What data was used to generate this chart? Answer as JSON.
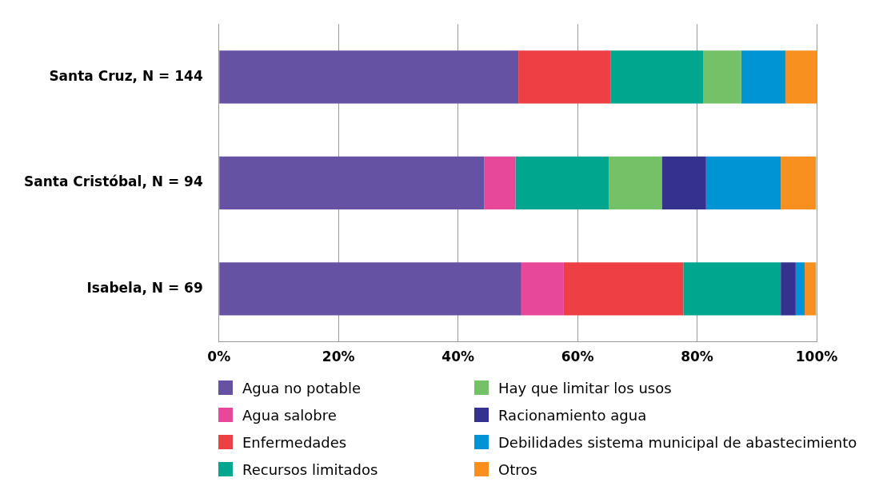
{
  "chart_data": {
    "type": "bar",
    "orientation": "horizontal",
    "stacked": true,
    "categories": [
      "Santa Cruz, N = 144",
      "Santa Cristóbal, N = 94",
      "Isabela, N = 69"
    ],
    "series": [
      {
        "name": "Agua no potable",
        "color": "#6652a3",
        "values": [
          50.1,
          44.4,
          50.6
        ]
      },
      {
        "name": "Agua salobre",
        "color": "#e8489a",
        "values": [
          0,
          5.2,
          7.1
        ]
      },
      {
        "name": "Enfermedades",
        "color": "#ee4044",
        "values": [
          15.4,
          0,
          20.0
        ]
      },
      {
        "name": "Recursos limitados",
        "color": "#00a78e",
        "values": [
          15.5,
          15.6,
          16.3
        ]
      },
      {
        "name": "Hay que limitar los usos",
        "color": "#74c168",
        "values": [
          6.4,
          8.9,
          0
        ]
      },
      {
        "name": "Racionamiento agua",
        "color": "#35318f",
        "values": [
          0,
          7.4,
          2.5
        ]
      },
      {
        "name": "Debilidades sistema municipal de abastecimiento",
        "color": "#0094d4",
        "values": [
          7.4,
          12.5,
          1.5
        ]
      },
      {
        "name": "Otros",
        "color": "#f7901e",
        "values": [
          5.2,
          5.9,
          1.9
        ]
      }
    ],
    "xlim": [
      0,
      100
    ],
    "xticks": [
      {
        "value": 0,
        "label": "0%"
      },
      {
        "value": 20,
        "label": "20%"
      },
      {
        "value": 40,
        "label": "40%"
      },
      {
        "value": 60,
        "label": "60%"
      },
      {
        "value": 80,
        "label": "80%"
      },
      {
        "value": 100,
        "label": "100%"
      }
    ],
    "grid": "x",
    "legend": "bottom"
  }
}
